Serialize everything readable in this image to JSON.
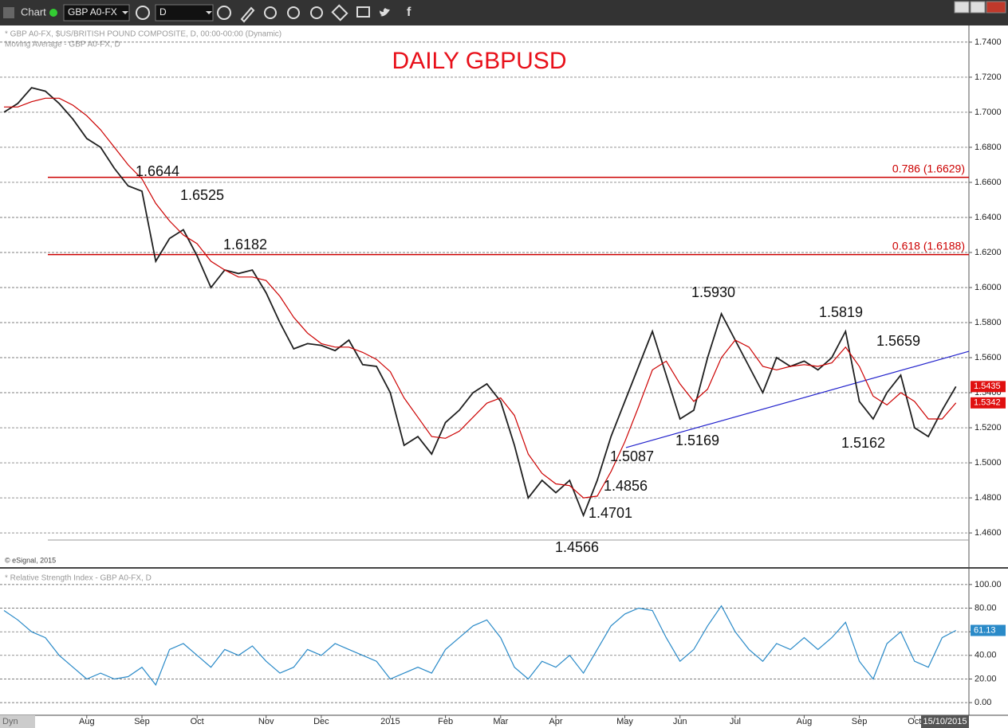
{
  "toolbar": {
    "title": "Chart",
    "symbol": "GBP A0-FX",
    "interval": "D"
  },
  "chart_data": [
    {
      "type": "line",
      "title": "DAILY GBPUSD",
      "legend_text": [
        "* GBP A0-FX, $US/BRITISH POUND COMPOSITE, D, 00:00-00:00 (Dynamic)",
        "Moving Average - GBP A0-FX, D"
      ],
      "copyright": "© eSignal, 2015",
      "date_label": "15/10/2015",
      "categories": [
        null,
        null,
        null,
        null,
        null,
        null,
        "Aug",
        null,
        null,
        null,
        "Sep",
        null,
        null,
        null,
        "Oct",
        null,
        null,
        null,
        null,
        "Nov",
        null,
        null,
        null,
        "Dec",
        null,
        null,
        null,
        null,
        "2015",
        null,
        null,
        null,
        "Feb",
        null,
        null,
        null,
        "Mar",
        null,
        null,
        null,
        "Apr",
        null,
        null,
        null,
        null,
        "May",
        null,
        null,
        null,
        "Jun",
        null,
        null,
        null,
        "Jul",
        null,
        null,
        null,
        null,
        "Aug",
        null,
        null,
        null,
        "Sep",
        null,
        null,
        null,
        "Oct",
        null,
        null,
        null
      ],
      "series": [
        {
          "color": "#1f1f1f",
          "values": [
            1.7,
            1.705,
            1.714,
            1.712,
            1.705,
            1.696,
            1.685,
            1.68,
            1.668,
            1.658,
            1.655,
            1.615,
            1.628,
            1.633,
            1.618,
            1.6,
            1.61,
            1.608,
            1.61,
            1.597,
            1.58,
            1.565,
            1.568,
            1.567,
            1.564,
            1.57,
            1.556,
            1.555,
            1.54,
            1.51,
            1.515,
            1.505,
            1.523,
            1.53,
            1.54,
            1.545,
            1.535,
            1.51,
            1.48,
            1.49,
            1.483,
            1.49,
            1.47,
            1.49,
            1.515,
            1.535,
            1.555,
            1.575,
            1.55,
            1.525,
            1.53,
            1.56,
            1.585,
            1.57,
            1.555,
            1.54,
            1.56,
            1.555,
            1.558,
            1.553,
            1.56,
            1.575,
            1.535,
            1.525,
            1.54,
            1.55,
            1.52,
            1.515,
            1.53,
            1.5435
          ]
        },
        {
          "color": "#cc0000",
          "values": [
            1.703,
            1.703,
            1.706,
            1.708,
            1.708,
            1.704,
            1.698,
            1.69,
            1.68,
            1.67,
            1.662,
            1.648,
            1.638,
            1.63,
            1.625,
            1.615,
            1.61,
            1.606,
            1.606,
            1.604,
            1.595,
            1.583,
            1.574,
            1.568,
            1.566,
            1.566,
            1.563,
            1.559,
            1.552,
            1.537,
            1.526,
            1.515,
            1.514,
            1.518,
            1.526,
            1.534,
            1.537,
            1.527,
            1.505,
            1.494,
            1.488,
            1.487,
            1.48,
            1.481,
            1.495,
            1.512,
            1.532,
            1.553,
            1.558,
            1.545,
            1.535,
            1.542,
            1.56,
            1.57,
            1.566,
            1.555,
            1.553,
            1.555,
            1.556,
            1.555,
            1.557,
            1.566,
            1.555,
            1.538,
            1.533,
            1.54,
            1.535,
            1.525,
            1.525,
            1.5342
          ]
        }
      ],
      "ylim": [
        1.4405,
        1.7495
      ],
      "yticks": [
        {
          "value": 1.46,
          "label": "1.4600"
        },
        {
          "value": 1.48,
          "label": "1.4800"
        },
        {
          "value": 1.5,
          "label": "1.5000"
        },
        {
          "value": 1.52,
          "label": "1.5200"
        },
        {
          "value": 1.54,
          "label": "1.5400"
        },
        {
          "value": 1.56,
          "label": "1.5600"
        },
        {
          "value": 1.58,
          "label": "1.5800"
        },
        {
          "value": 1.6,
          "label": "1.6000"
        },
        {
          "value": 1.62,
          "label": "1.6200"
        },
        {
          "value": 1.64,
          "label": "1.6400"
        },
        {
          "value": 1.66,
          "label": "1.6600"
        },
        {
          "value": 1.68,
          "label": "1.6800"
        },
        {
          "value": 1.7,
          "label": "1.7000"
        },
        {
          "value": 1.72,
          "label": "1.7200"
        },
        {
          "value": 1.74,
          "label": "1.7400"
        }
      ],
      "grid": true,
      "fib_levels": [
        {
          "label": "0.786 (1.6629)",
          "value": 1.6629,
          "color": "#cc0000"
        },
        {
          "label": "0.618 (1.6188)",
          "value": 1.6188,
          "color": "#cc0000"
        }
      ],
      "trendline": {
        "color": "#2222cc",
        "values": [
          1.5087,
          1.5636
        ]
      },
      "annotations": [
        "1.6644",
        "1.6525",
        "1.6182",
        "1.5930",
        "1.5819",
        "1.5659",
        "1.5169",
        "1.5162",
        "1.5087",
        "1.4856",
        "1.4701",
        "1.4566"
      ]
    },
    {
      "type": "line",
      "title": "* Relative Strength Index - GBP A0-FX, D",
      "series": [
        {
          "color": "#2a8ac8",
          "values": [
            78,
            70,
            60,
            55,
            40,
            30,
            20,
            25,
            20,
            22,
            30,
            15,
            45,
            50,
            40,
            30,
            45,
            40,
            48,
            35,
            25,
            30,
            45,
            40,
            50,
            45,
            40,
            35,
            20,
            25,
            30,
            25,
            45,
            55,
            65,
            70,
            55,
            30,
            20,
            35,
            30,
            40,
            25,
            45,
            65,
            75,
            80,
            78,
            55,
            35,
            45,
            65,
            82,
            60,
            45,
            35,
            50,
            45,
            55,
            45,
            55,
            68,
            35,
            20,
            50,
            60,
            35,
            30,
            55,
            61.13
          ]
        }
      ],
      "ylim": [
        -10.7,
        110.7
      ],
      "yticks": [
        {
          "value": 0,
          "label": "0.00"
        },
        {
          "value": 20,
          "label": "20.00"
        },
        {
          "value": 40,
          "label": "40.00"
        },
        {
          "value": 60,
          "label": "60.00"
        },
        {
          "value": 80,
          "label": "80.00"
        },
        {
          "value": 100,
          "label": "100.00"
        }
      ],
      "grid": true
    }
  ]
}
